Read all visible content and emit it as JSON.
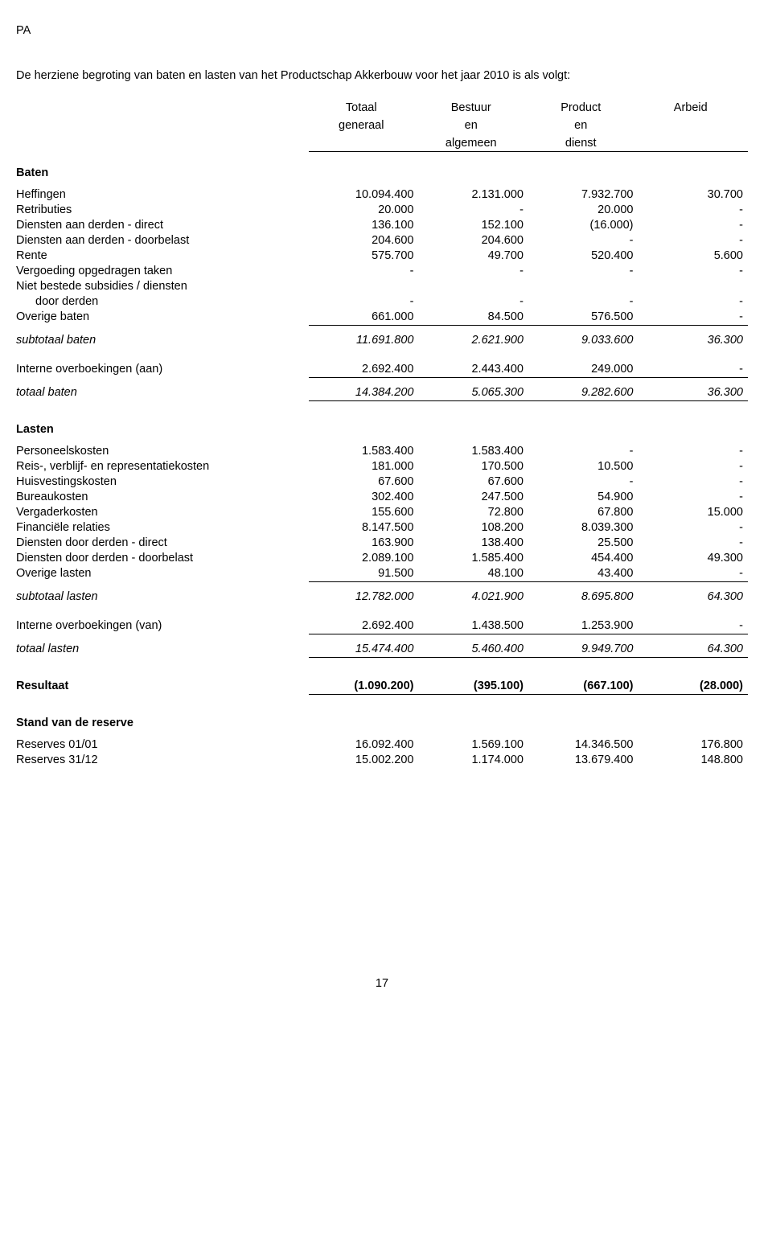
{
  "pa": "PA",
  "intro": "De herziene begroting van baten en lasten van het Productschap Akkerbouw voor het jaar 2010 is als volgt:",
  "pagenum": "17",
  "headers": {
    "c1a": "Totaal",
    "c1b": "generaal",
    "c2a": "Bestuur",
    "c2b": "en",
    "c2c": "algemeen",
    "c3a": "Product",
    "c3b": "en",
    "c3c": "dienst",
    "c4a": "Arbeid"
  },
  "sections": {
    "baten": "Baten",
    "lasten": "Lasten",
    "standreserve": "Stand van de reserve"
  },
  "labels": {
    "heffingen": "Heffingen",
    "retributies": "Retributies",
    "dad_direct": "Diensten aan derden - direct",
    "dad_doorbelast": "Diensten aan derden - doorbelast",
    "rente": "Rente",
    "vergoeding": "Vergoeding opgedragen taken",
    "niet_bestede": "Niet bestede subsidies / diensten",
    "door_derden": "door derden",
    "overige_baten": "Overige baten",
    "subtotaal_baten": "subtotaal baten",
    "interne_aan": "Interne overboekingen (aan)",
    "totaal_baten": "totaal baten",
    "personeelskosten": "Personeelskosten",
    "reis": "Reis-, verblijf- en representatiekosten",
    "huisvestingskosten": "Huisvestingskosten",
    "bureaukosten": "Bureaukosten",
    "vergaderkosten": "Vergaderkosten",
    "fin_relaties": "Financiële relaties",
    "ddd_direct": "Diensten door derden - direct",
    "ddd_doorbelast": "Diensten door derden - doorbelast",
    "overige_lasten": "Overige lasten",
    "subtotaal_lasten": "subtotaal lasten",
    "interne_van": "Interne overboekingen (van)",
    "totaal_lasten": "totaal lasten",
    "resultaat": "Resultaat",
    "reserves_0101": "Reserves 01/01",
    "reserves_3112": "Reserves 31/12"
  },
  "rows": {
    "heffingen": [
      "10.094.400",
      "2.131.000",
      "7.932.700",
      "30.700"
    ],
    "retributies": [
      "20.000",
      "-",
      "20.000",
      "-"
    ],
    "dad_direct": [
      "136.100",
      "152.100",
      "(16.000)",
      "-"
    ],
    "dad_doorbelast": [
      "204.600",
      "204.600",
      "-",
      "-"
    ],
    "rente": [
      "575.700",
      "49.700",
      "520.400",
      "5.600"
    ],
    "vergoeding": [
      "-",
      "-",
      "-",
      "-"
    ],
    "door_derden": [
      "-",
      "-",
      "-",
      "-"
    ],
    "overige_baten": [
      "661.000",
      "84.500",
      "576.500",
      "-"
    ],
    "subtotaal_baten": [
      "11.691.800",
      "2.621.900",
      "9.033.600",
      "36.300"
    ],
    "interne_aan": [
      "2.692.400",
      "2.443.400",
      "249.000",
      "-"
    ],
    "totaal_baten": [
      "14.384.200",
      "5.065.300",
      "9.282.600",
      "36.300"
    ],
    "personeelskosten": [
      "1.583.400",
      "1.583.400",
      "-",
      "-"
    ],
    "reis": [
      "181.000",
      "170.500",
      "10.500",
      "-"
    ],
    "huisvestingskosten": [
      "67.600",
      "67.600",
      "-",
      "-"
    ],
    "bureaukosten": [
      "302.400",
      "247.500",
      "54.900",
      "-"
    ],
    "vergaderkosten": [
      "155.600",
      "72.800",
      "67.800",
      "15.000"
    ],
    "fin_relaties": [
      "8.147.500",
      "108.200",
      "8.039.300",
      "-"
    ],
    "ddd_direct": [
      "163.900",
      "138.400",
      "25.500",
      "-"
    ],
    "ddd_doorbelast": [
      "2.089.100",
      "1.585.400",
      "454.400",
      "49.300"
    ],
    "overige_lasten": [
      "91.500",
      "48.100",
      "43.400",
      "-"
    ],
    "subtotaal_lasten": [
      "12.782.000",
      "4.021.900",
      "8.695.800",
      "64.300"
    ],
    "interne_van": [
      "2.692.400",
      "1.438.500",
      "1.253.900",
      "-"
    ],
    "totaal_lasten": [
      "15.474.400",
      "5.460.400",
      "9.949.700",
      "64.300"
    ],
    "resultaat": [
      "(1.090.200)",
      "(395.100)",
      "(667.100)",
      "(28.000)"
    ],
    "reserves_0101": [
      "16.092.400",
      "1.569.100",
      "14.346.500",
      "176.800"
    ],
    "reserves_3112": [
      "15.002.200",
      "1.174.000",
      "13.679.400",
      "148.800"
    ]
  }
}
